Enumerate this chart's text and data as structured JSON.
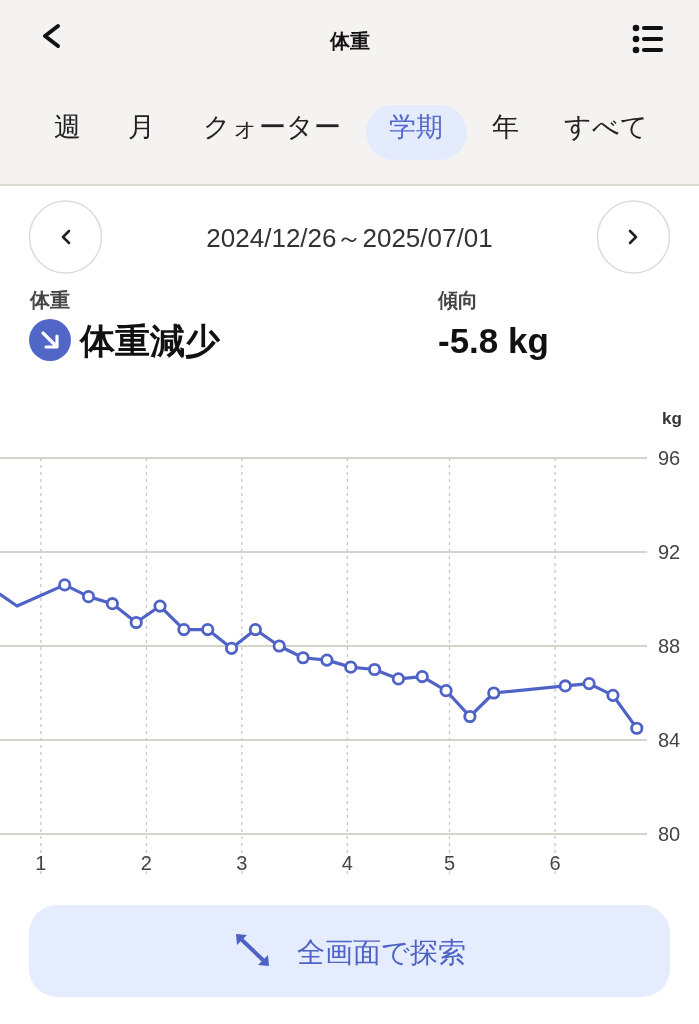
{
  "chart_data": {
    "type": "line",
    "title": "体重",
    "subtitle": "2024/12/26～2025/07/01",
    "ylabel": "kg",
    "series": [
      {
        "color": "#4f63c7",
        "marker": "none",
        "x": [
          "2024-12-20",
          "2024-12-25",
          "2025-01-08"
        ],
        "values": [
          90.2,
          89.7,
          90.6
        ]
      },
      {
        "color": "#4f63c7",
        "marker": "circle",
        "x": [
          "2025-01-08",
          "2025-01-15",
          "2025-01-22",
          "2025-01-29",
          "2025-02-05",
          "2025-02-12",
          "2025-02-19",
          "2025-02-26",
          "2025-03-05",
          "2025-03-12",
          "2025-03-19",
          "2025-03-26",
          "2025-04-02",
          "2025-04-09",
          "2025-04-16",
          "2025-04-23",
          "2025-04-30",
          "2025-05-07",
          "2025-05-14",
          "2025-06-04",
          "2025-06-11",
          "2025-06-18",
          "2025-06-25"
        ],
        "values": [
          90.6,
          90.1,
          89.8,
          89.0,
          89.7,
          88.7,
          88.7,
          87.9,
          88.7,
          88.0,
          87.5,
          87.4,
          87.1,
          87.0,
          86.6,
          86.7,
          86.1,
          85.0,
          86.0,
          86.3,
          86.4,
          85.9,
          84.5
        ]
      }
    ],
    "xlim": [
      "2024-12-20",
      "2025-06-28"
    ],
    "xticks": [
      {
        "value": "2025-01-01",
        "label": "1"
      },
      {
        "value": "2025-02-01",
        "label": "2"
      },
      {
        "value": "2025-03-01",
        "label": "3"
      },
      {
        "value": "2025-04-01",
        "label": "4"
      },
      {
        "value": "2025-05-01",
        "label": "5"
      },
      {
        "value": "2025-06-01",
        "label": "6"
      }
    ],
    "ylim": [
      80,
      96
    ],
    "yticks": [
      80,
      84,
      88,
      92,
      96
    ],
    "grid": true,
    "line_style": "solid",
    "annotations": [
      "週",
      "月",
      "クォーター",
      "学期",
      "年",
      "すべて",
      "体重",
      "体重減少",
      "傾向",
      "-5.8 kg",
      "全画面で探索"
    ]
  }
}
